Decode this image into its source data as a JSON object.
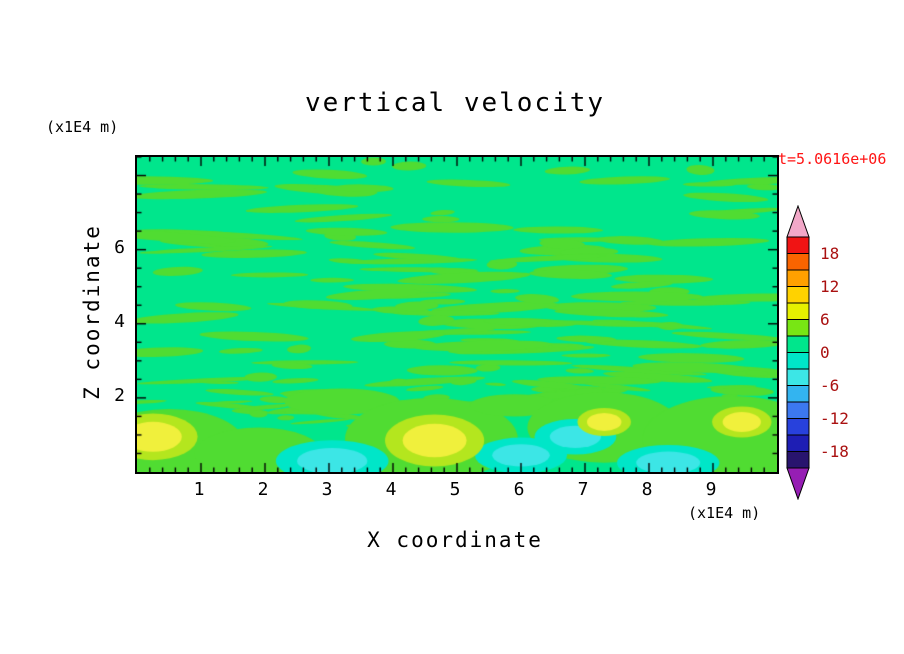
{
  "title": "vertical velocity",
  "axis_unit_top_left": "(x1E4 m)",
  "axis_unit_bottom_right": "(x1E4 m)",
  "x_axis_label": "X coordinate",
  "y_axis_label": "Z coordinate",
  "time_label": "t=5.0616e+06",
  "colors": {
    "time_label": "#FF1414",
    "colorbar_labels": "#AA1111",
    "frame": "#000000"
  },
  "chart_data": {
    "type": "heatmap",
    "title": "vertical velocity",
    "xlabel": "X coordinate",
    "ylabel": "Z coordinate",
    "x_unit_scale": "x1E4 m",
    "y_unit_scale": "x1E4 m",
    "time_annotation": "t=5.0616e+06",
    "xlim": [
      0,
      10
    ],
    "ylim": [
      0,
      8.5
    ],
    "x_ticks": [
      1,
      2,
      3,
      4,
      5,
      6,
      7,
      8,
      9
    ],
    "y_ticks": [
      2,
      4,
      6
    ],
    "x_minor_step": 0.2,
    "y_minor_step": 0.5,
    "grid": false,
    "legend_position": "right-colorbar",
    "colorbar": {
      "labels": [
        18,
        12,
        6,
        0,
        -6,
        -12,
        -18
      ],
      "level_min": -21,
      "level_max": 21,
      "level_step": 3,
      "segment_colors_top_to_bottom": [
        "#F01414",
        "#FA6400",
        "#FFA000",
        "#FFD200",
        "#E6F000",
        "#78E614",
        "#00E68C",
        "#00E6C8",
        "#3CE6E6",
        "#33B4F0",
        "#3C78F0",
        "#2841DC",
        "#1E1EB4",
        "#28146E"
      ],
      "arrow_top_color": "#F2A8C8",
      "arrow_bottom_color": "#961EB4"
    },
    "field": {
      "description": "vertical velocity field: mostly near-zero (teal-green, level 0-3) with thin wavy positive green bands aloft; stronger convective cells below z=2 with yellow updraft cores and cyan downdraft patches",
      "background_level_color": "#00E68C",
      "stripe_color": "#50DC32",
      "stripe_seed": 7,
      "stripe_count": 130,
      "fine_band_count": 50,
      "green_blobs": [
        {
          "x": 0.5,
          "z": 0.7,
          "rx": 1.2,
          "rz": 1.0
        },
        {
          "x": 1.9,
          "z": 0.5,
          "rx": 1.0,
          "rz": 0.7
        },
        {
          "x": 3.2,
          "z": 1.9,
          "rx": 0.9,
          "rz": 0.35
        },
        {
          "x": 4.6,
          "z": 0.9,
          "rx": 1.35,
          "rz": 1.1
        },
        {
          "x": 5.9,
          "z": 1.8,
          "rx": 0.7,
          "rz": 0.3
        },
        {
          "x": 7.3,
          "z": 1.2,
          "rx": 1.2,
          "rz": 0.95
        },
        {
          "x": 9.3,
          "z": 0.9,
          "rx": 1.4,
          "rz": 1.15
        }
      ],
      "yellow_blobs": [
        {
          "x": 0.25,
          "z": 0.95,
          "r": 0.45
        },
        {
          "x": 4.65,
          "z": 0.85,
          "r": 0.5
        },
        {
          "x": 7.3,
          "z": 1.35,
          "r": 0.27
        },
        {
          "x": 9.45,
          "z": 1.35,
          "r": 0.3
        }
      ],
      "cyan_patches": [
        {
          "x": 3.05,
          "z": 0.3,
          "rx": 0.55,
          "rz": 0.35
        },
        {
          "x": 6.0,
          "z": 0.45,
          "rx": 0.45,
          "rz": 0.3
        },
        {
          "x": 6.85,
          "z": 0.95,
          "rx": 0.4,
          "rz": 0.3
        },
        {
          "x": 8.3,
          "z": 0.25,
          "rx": 0.5,
          "rz": 0.3
        }
      ],
      "yellow_ring_color": "#B4E61E",
      "yellow_color": "#F0F03C",
      "cyan_color": "#3CE6E6",
      "cyan_ring_color": "#00E6C8"
    }
  }
}
